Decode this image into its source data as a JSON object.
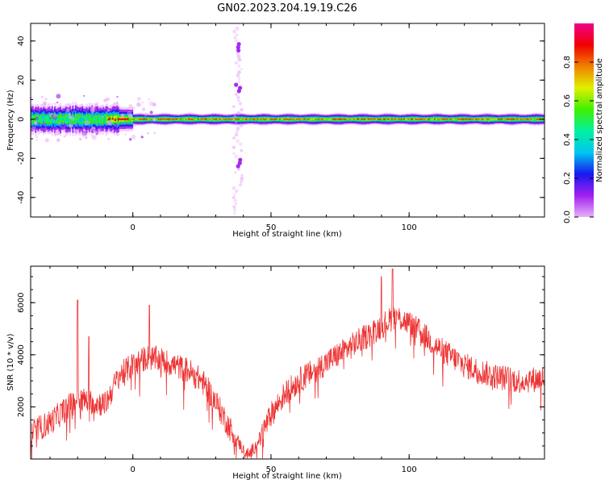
{
  "figure": {
    "title": "GN02.2023.204.19.19.C26"
  },
  "colors": {
    "snr_line": "#ee3333",
    "background": "#ffffff",
    "axis": "#000000"
  },
  "chart_data": [
    {
      "type": "heatmap",
      "xlabel": "Height of straight line (km)",
      "ylabel": "Frequency (Hz)",
      "xlim": [
        -37,
        149
      ],
      "ylim": [
        -50,
        49
      ],
      "xticks": [
        0,
        50,
        100
      ],
      "yticks": [
        -40,
        -20,
        0,
        20,
        40
      ],
      "grid": false,
      "colorbar": {
        "label": "Normalized spectral amplitude",
        "range": [
          0,
          1
        ],
        "ticks": [
          "0.0",
          "0.2",
          "0.4",
          "0.6",
          "0.8"
        ],
        "colormap": [
          "#e8b0f8",
          "#a020f0",
          "#1818f0",
          "#00c8f0",
          "#00f0a0",
          "#40f000",
          "#e0f000",
          "#f08000",
          "#f00000",
          "#f0008c"
        ]
      },
      "ridge": {
        "description_values": "dominant energy band centred at 0 Hz",
        "center_hz": 0,
        "low_altitude_spread_hz": [
          -8,
          8
        ],
        "high_altitude_spread_hz": [
          -3,
          3
        ]
      },
      "vertical_streak": {
        "x_km": 38,
        "freq_range_hz": [
          -48,
          48
        ]
      }
    },
    {
      "type": "line",
      "xlabel": "Height of straight line (km)",
      "ylabel": "SNR (10 * v/v)",
      "xlim": [
        -37,
        149
      ],
      "ylim": [
        0,
        7400
      ],
      "xticks": [
        0,
        50,
        100
      ],
      "yticks": [
        2000,
        4000,
        6000
      ],
      "grid": false,
      "series": [
        {
          "color": "#ee3333",
          "trend_x": [
            -37,
            -30,
            -20,
            -10,
            -5,
            0,
            5,
            10,
            15,
            20,
            25,
            30,
            35,
            40,
            42,
            45,
            50,
            55,
            60,
            70,
            80,
            90,
            95,
            100,
            105,
            110,
            120,
            130,
            140,
            149
          ],
          "trend_y": [
            1000,
            1400,
            2300,
            2100,
            3200,
            3600,
            3900,
            3800,
            3600,
            3400,
            3000,
            2200,
            1200,
            350,
            150,
            600,
            1700,
            2500,
            3000,
            3700,
            4400,
            5100,
            5500,
            5200,
            4800,
            4300,
            3600,
            3200,
            3000,
            3100
          ],
          "noise_amplitude": 500,
          "spikes": [
            {
              "x": -20,
              "y": 6100
            },
            {
              "x": -16,
              "y": 4700
            },
            {
              "x": 6,
              "y": 5900
            },
            {
              "x": 90,
              "y": 7000
            },
            {
              "x": 94,
              "y": 7300
            }
          ]
        }
      ]
    }
  ]
}
